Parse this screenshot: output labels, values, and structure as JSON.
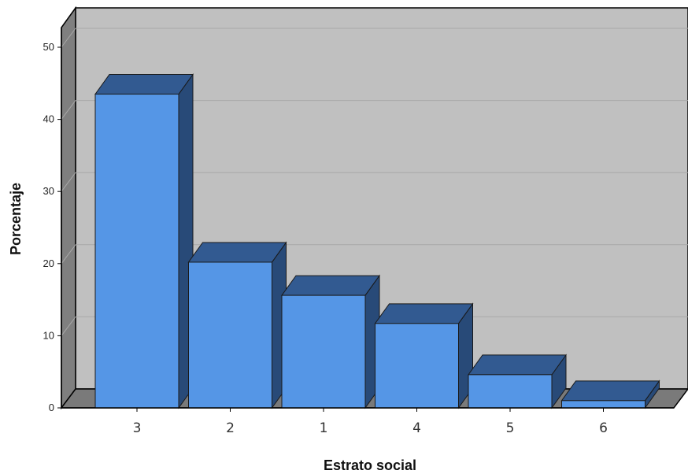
{
  "chart_data": {
    "type": "bar",
    "categories": [
      "3",
      "2",
      "1",
      "4",
      "5",
      "6"
    ],
    "values": [
      43.5,
      20.2,
      15.6,
      11.7,
      4.6,
      1.0
    ],
    "title": "",
    "xlabel": "Estrato social",
    "ylabel": "Porcentaje",
    "ylim": [
      0,
      50
    ],
    "yticks": [
      0,
      10,
      20,
      30,
      40,
      50
    ],
    "grid": true,
    "legend": "none",
    "colors": {
      "bar_front": "#5596e6",
      "bar_top": "#325a91",
      "bar_side": "#284a78",
      "back_wall": "#c0c0c0",
      "side_wall": "#7f7f7f",
      "floor": "#7a7a7a",
      "grid": "#a8a8a8"
    }
  }
}
